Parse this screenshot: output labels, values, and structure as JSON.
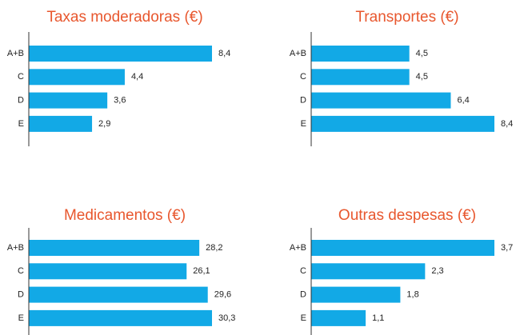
{
  "chart_data": [
    {
      "type": "bar",
      "orientation": "horizontal",
      "title": "Taxas moderadoras (€)",
      "color": "#12a9e6",
      "categories": [
        "A+B",
        "C",
        "D",
        "E"
      ],
      "values": [
        8.4,
        4.4,
        3.6,
        2.9
      ],
      "value_labels": [
        "8,4",
        "4,4",
        "3,6",
        "2,9"
      ]
    },
    {
      "type": "bar",
      "orientation": "horizontal",
      "title": "Transportes (€)",
      "color": "#12a9e6",
      "categories": [
        "A+B",
        "C",
        "D",
        "E"
      ],
      "values": [
        4.5,
        4.5,
        6.4,
        8.4
      ],
      "value_labels": [
        "4,5",
        "4,5",
        "6,4",
        "8,4"
      ]
    },
    {
      "type": "bar",
      "orientation": "horizontal",
      "title": "Medicamentos (€)",
      "color": "#12a9e6",
      "categories": [
        "A+B",
        "C",
        "D",
        "E"
      ],
      "values": [
        28.2,
        26.1,
        29.6,
        30.3
      ],
      "value_labels": [
        "28,2",
        "26,1",
        "29,6",
        "30,3"
      ]
    },
    {
      "type": "bar",
      "orientation": "horizontal",
      "title": "Outras despesas (€)",
      "color": "#12a9e6",
      "categories": [
        "A+B",
        "C",
        "D",
        "E"
      ],
      "values": [
        3.7,
        2.3,
        1.8,
        1.1
      ],
      "value_labels": [
        "3,7",
        "2,3",
        "1,8",
        "1,1"
      ]
    }
  ]
}
